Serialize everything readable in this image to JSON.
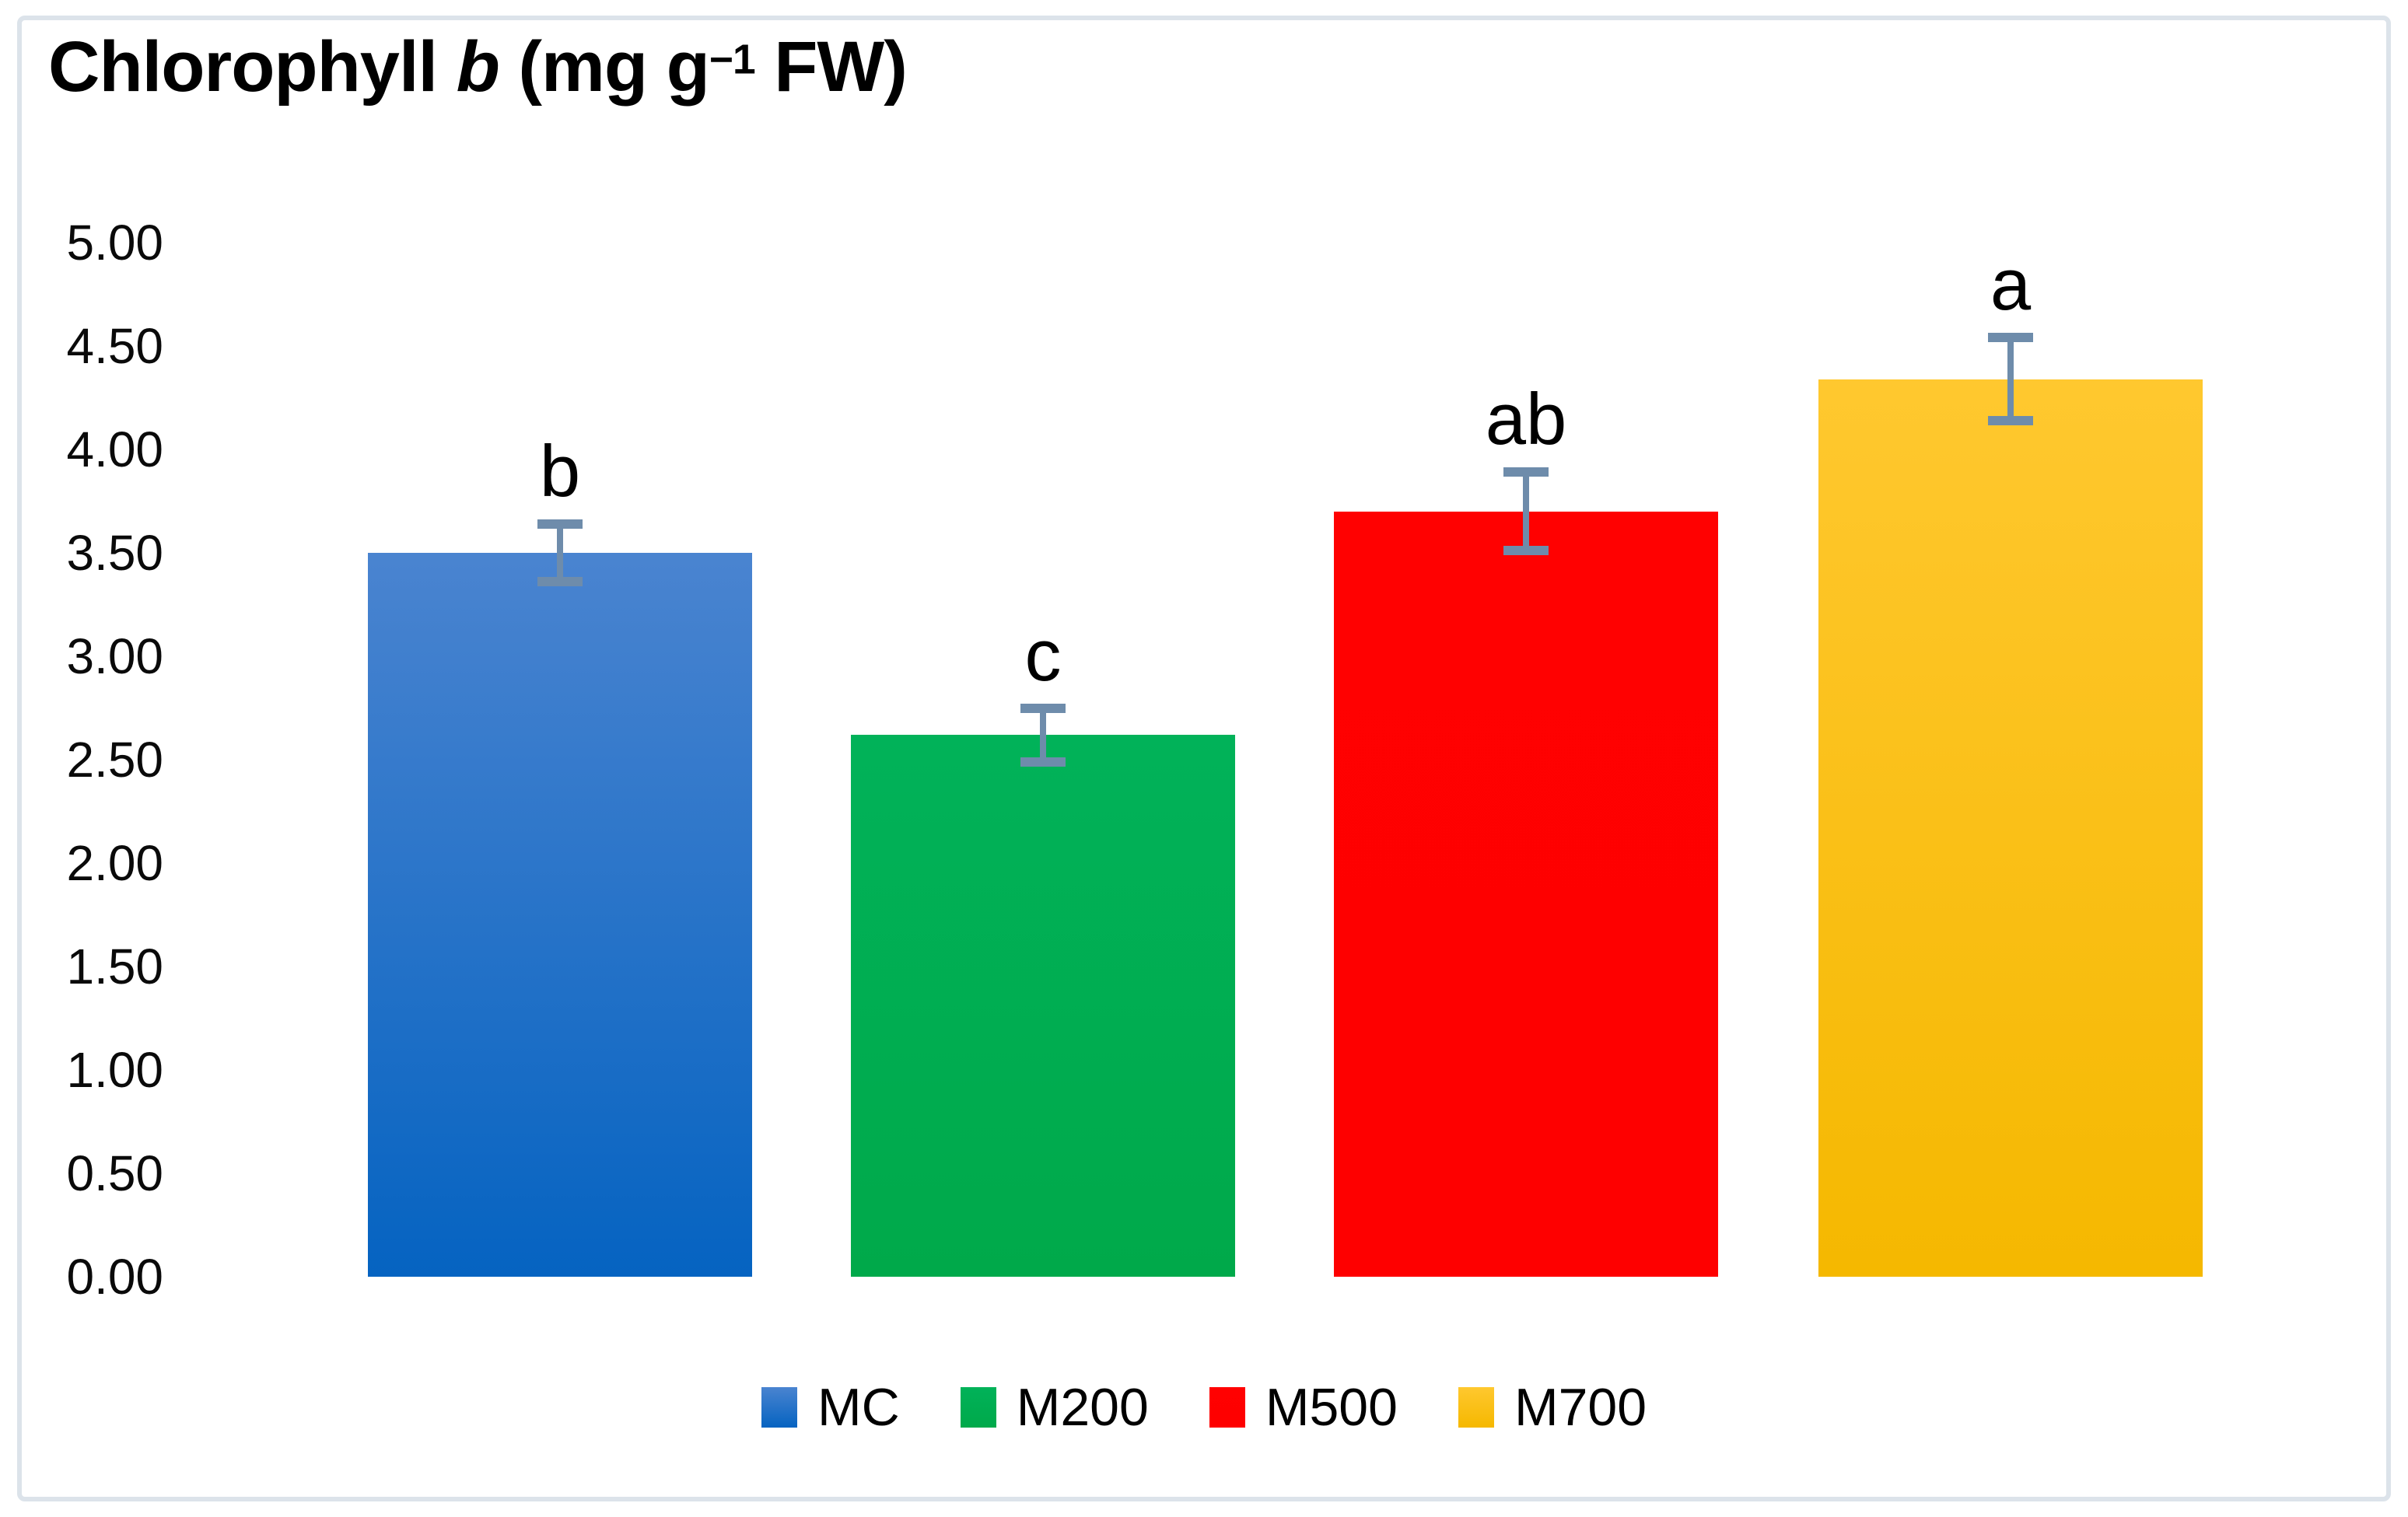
{
  "title": {
    "name": "Chlorophyll ",
    "species": "b",
    "unit_open": " (mg g",
    "exponent": "−1",
    "unit_close": " FW)"
  },
  "chart_data": {
    "type": "bar",
    "title": "Chlorophyll b (mg g⁻¹ FW)",
    "categories": [
      "MC",
      "M200",
      "M500",
      "M700"
    ],
    "values": [
      3.5,
      2.62,
      3.7,
      4.34
    ],
    "error_bars": [
      0.14,
      0.13,
      0.19,
      0.2
    ],
    "sig_letters": [
      "b",
      "c",
      "ab",
      "a"
    ],
    "y_ticks": [
      "5.00",
      "4.50",
      "4.00",
      "3.50",
      "3.00",
      "2.50",
      "2.00",
      "1.50",
      "1.00",
      "0.50",
      "0.00"
    ],
    "ylim": [
      0,
      5
    ],
    "xlabel": "",
    "ylabel": "",
    "grid": false,
    "legend_position": "bottom",
    "legend": [
      "MC",
      "M200",
      "M500",
      "M700"
    ],
    "bar_colors_top": [
      "#4a84d0",
      "#01b259",
      "#ff0101",
      "#ffc82f"
    ],
    "bar_colors_bottom": [
      "#0563c1",
      "#00a94a",
      "#fe0000",
      "#f5b800"
    ],
    "error_bar_color": "#6e8cab"
  }
}
